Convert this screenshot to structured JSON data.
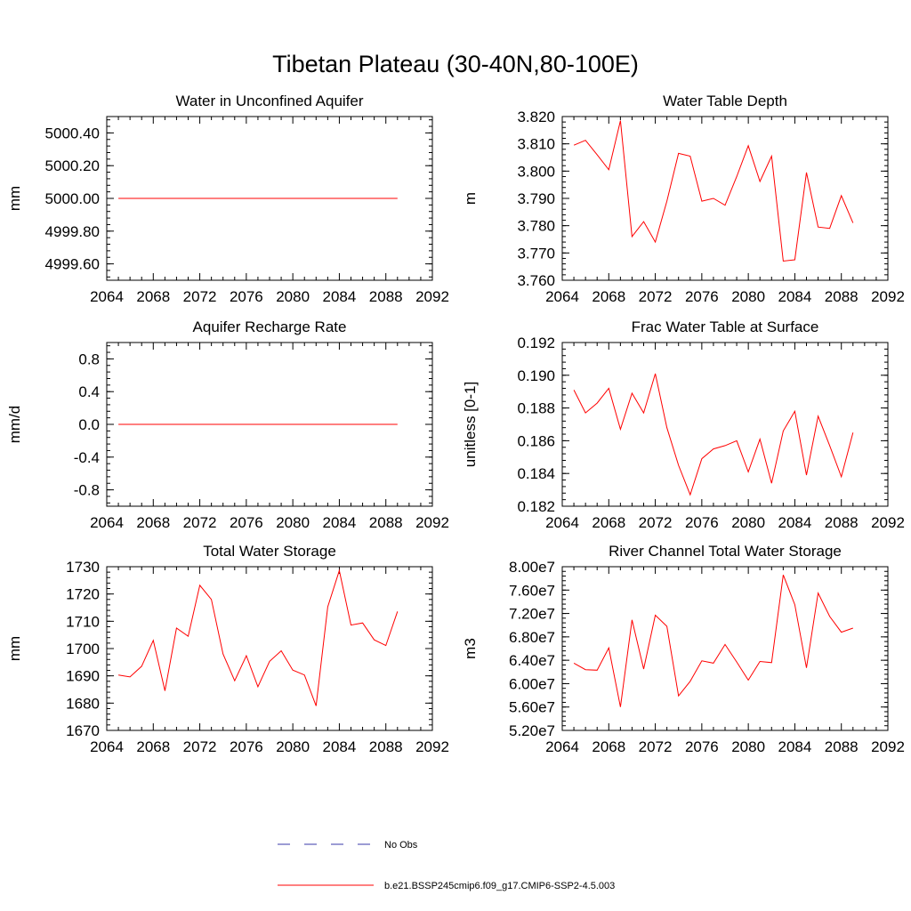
{
  "figure": {
    "title": "Tibetan Plateau (30-40N,80-100E)"
  },
  "legend": [
    {
      "label": "No Obs",
      "color": "#3a3aa8",
      "style": "dashed"
    },
    {
      "label": "b.e21.BSSP245cmip6.f09_g17.CMIP6-SSP2-4.5.003",
      "color": "#ff0000",
      "style": "solid"
    }
  ],
  "chart_data": [
    {
      "type": "line",
      "title": "Water in Unconfined Aquifer",
      "ylabel": "mm",
      "xlim": [
        2064,
        2092
      ],
      "ylim": [
        4999.5,
        5000.5
      ],
      "x_ticks": [
        2064,
        2068,
        2072,
        2076,
        2080,
        2084,
        2088,
        2092
      ],
      "y_ticks": [
        "4999.60",
        "4999.80",
        "5000.00",
        "5000.20",
        "5000.40"
      ],
      "series": [
        {
          "color": "#ff0000",
          "x": [
            2065,
            2066,
            2067,
            2068,
            2069,
            2070,
            2071,
            2072,
            2073,
            2074,
            2075,
            2076,
            2077,
            2078,
            2079,
            2080,
            2081,
            2082,
            2083,
            2084,
            2085,
            2086,
            2087,
            2088,
            2089
          ],
          "y": [
            5000,
            5000,
            5000,
            5000,
            5000,
            5000,
            5000,
            5000,
            5000,
            5000,
            5000,
            5000,
            5000,
            5000,
            5000,
            5000,
            5000,
            5000,
            5000,
            5000,
            5000,
            5000,
            5000,
            5000,
            5000
          ]
        }
      ]
    },
    {
      "type": "line",
      "title": "Water Table Depth",
      "ylabel": "m",
      "xlim": [
        2064,
        2092
      ],
      "ylim": [
        3.76,
        3.82
      ],
      "x_ticks": [
        2064,
        2068,
        2072,
        2076,
        2080,
        2084,
        2088,
        2092
      ],
      "y_ticks": [
        "3.760",
        "3.770",
        "3.780",
        "3.790",
        "3.800",
        "3.810",
        "3.820"
      ],
      "series": [
        {
          "color": "#ff0000",
          "x": [
            2065,
            2066,
            2067,
            2068,
            2069,
            2070,
            2071,
            2072,
            2073,
            2074,
            2075,
            2076,
            2077,
            2078,
            2079,
            2080,
            2081,
            2082,
            2083,
            2084,
            2085,
            2086,
            2087,
            2088,
            2089
          ],
          "y": [
            3.8095,
            3.8113,
            3.806,
            3.8005,
            3.8185,
            3.776,
            3.7815,
            3.774,
            3.789,
            3.8065,
            3.8055,
            3.789,
            3.79,
            3.7875,
            3.798,
            3.8093,
            3.7962,
            3.8055,
            3.767,
            3.7675,
            3.7995,
            3.7795,
            3.779,
            3.791,
            3.781
          ]
        }
      ]
    },
    {
      "type": "line",
      "title": "Aquifer Recharge Rate",
      "ylabel": "mm/d",
      "xlim": [
        2064,
        2092
      ],
      "ylim": [
        -1,
        1
      ],
      "x_ticks": [
        2064,
        2068,
        2072,
        2076,
        2080,
        2084,
        2088,
        2092
      ],
      "y_ticks": [
        "-0.8",
        "-0.4",
        "0.0",
        "0.4",
        "0.8"
      ],
      "series": [
        {
          "color": "#ff0000",
          "x": [
            2065,
            2066,
            2067,
            2068,
            2069,
            2070,
            2071,
            2072,
            2073,
            2074,
            2075,
            2076,
            2077,
            2078,
            2079,
            2080,
            2081,
            2082,
            2083,
            2084,
            2085,
            2086,
            2087,
            2088,
            2089
          ],
          "y": [
            0,
            0,
            0,
            0,
            0,
            0,
            0,
            0,
            0,
            0,
            0,
            0,
            0,
            0,
            0,
            0,
            0,
            0,
            0,
            0,
            0,
            0,
            0,
            0,
            0
          ]
        }
      ]
    },
    {
      "type": "line",
      "title": "Frac Water Table at Surface",
      "ylabel": "unitless [0-1]",
      "xlim": [
        2064,
        2092
      ],
      "ylim": [
        0.182,
        0.192
      ],
      "x_ticks": [
        2064,
        2068,
        2072,
        2076,
        2080,
        2084,
        2088,
        2092
      ],
      "y_ticks": [
        "0.182",
        "0.184",
        "0.186",
        "0.188",
        "0.190",
        "0.192"
      ],
      "series": [
        {
          "color": "#ff0000",
          "x": [
            2065,
            2066,
            2067,
            2068,
            2069,
            2070,
            2071,
            2072,
            2073,
            2074,
            2075,
            2076,
            2077,
            2078,
            2079,
            2080,
            2081,
            2082,
            2083,
            2084,
            2085,
            2086,
            2087,
            2088,
            2089
          ],
          "y": [
            0.1891,
            0.1877,
            0.1883,
            0.1892,
            0.1867,
            0.1889,
            0.1877,
            0.1901,
            0.1868,
            0.1845,
            0.1827,
            0.1849,
            0.1855,
            0.1857,
            0.186,
            0.1841,
            0.1861,
            0.1834,
            0.1866,
            0.1878,
            0.1839,
            0.1875,
            0.1857,
            0.1838,
            0.1865
          ]
        }
      ]
    },
    {
      "type": "line",
      "title": "Total Water Storage",
      "ylabel": "mm",
      "xlim": [
        2064,
        2092
      ],
      "ylim": [
        1670,
        1730
      ],
      "x_ticks": [
        2064,
        2068,
        2072,
        2076,
        2080,
        2084,
        2088,
        2092
      ],
      "y_ticks": [
        "1670",
        "1680",
        "1690",
        "1700",
        "1710",
        "1720",
        "1730"
      ],
      "series": [
        {
          "color": "#ff0000",
          "x": [
            2065,
            2066,
            2067,
            2068,
            2069,
            2070,
            2071,
            2072,
            2073,
            2074,
            2075,
            2076,
            2077,
            2078,
            2079,
            2080,
            2081,
            2082,
            2083,
            2084,
            2085,
            2086,
            2087,
            2088,
            2089
          ],
          "y": [
            1690.3,
            1689.6,
            1693.5,
            1703.0,
            1684.5,
            1707.5,
            1704.5,
            1723.2,
            1718.0,
            1698.0,
            1688.2,
            1697.4,
            1686.0,
            1695.3,
            1699.2,
            1692.1,
            1690.3,
            1679.0,
            1715.3,
            1728.6,
            1708.6,
            1709.4,
            1703.2,
            1701.1,
            1713.6
          ]
        }
      ]
    },
    {
      "type": "line",
      "title": "River Channel Total Water Storage",
      "ylabel": "m3",
      "xlim": [
        2064,
        2092
      ],
      "ylim": [
        52000000,
        80000000
      ],
      "x_ticks": [
        2064,
        2068,
        2072,
        2076,
        2080,
        2084,
        2088,
        2092
      ],
      "y_ticks": [
        "5.20e7",
        "5.60e7",
        "6.00e7",
        "6.40e7",
        "6.80e7",
        "7.20e7",
        "7.60e7",
        "8.00e7"
      ],
      "series": [
        {
          "color": "#ff0000",
          "x": [
            2065,
            2066,
            2067,
            2068,
            2069,
            2070,
            2071,
            2072,
            2073,
            2074,
            2075,
            2076,
            2077,
            2078,
            2079,
            2080,
            2081,
            2082,
            2083,
            2084,
            2085,
            2086,
            2087,
            2088,
            2089
          ],
          "y": [
            63500000,
            62400000,
            62300000,
            66100000,
            56000000,
            70900000,
            62500000,
            71700000,
            69800000,
            57900000,
            60400000,
            63900000,
            63500000,
            66700000,
            63700000,
            60600000,
            63800000,
            63600000,
            78600000,
            73500000,
            62700000,
            75500000,
            71500000,
            68800000,
            69500000
          ]
        }
      ]
    }
  ]
}
